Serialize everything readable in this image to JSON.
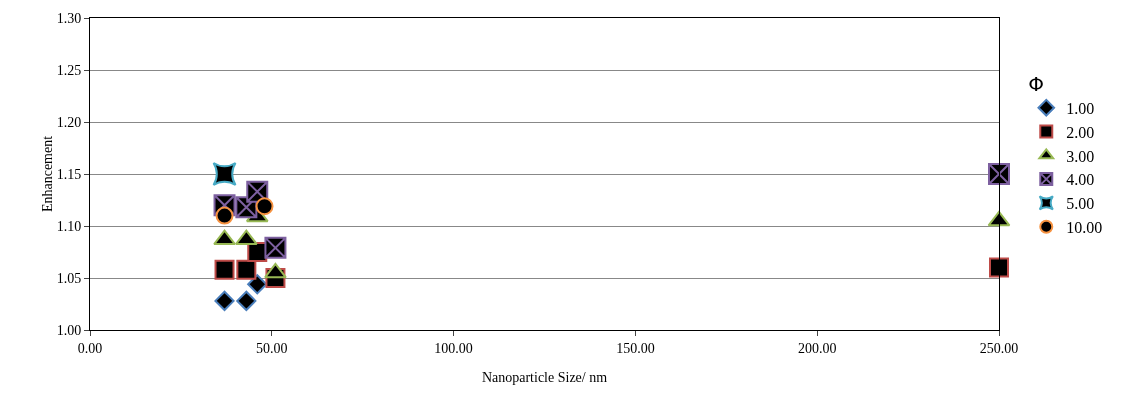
{
  "chart_data": {
    "type": "scatter",
    "xlabel": "Nanoparticle Size/ nm",
    "ylabel": "Enhancement",
    "legend_title": "Φ",
    "xlim": [
      0,
      250
    ],
    "xticks": [
      {
        "value": 0,
        "label": "0.00"
      },
      {
        "value": 50,
        "label": "50.00"
      },
      {
        "value": 100,
        "label": "100.00"
      },
      {
        "value": 150,
        "label": "150.00"
      },
      {
        "value": 200,
        "label": "200.00"
      },
      {
        "value": 250,
        "label": "250.00"
      }
    ],
    "ylim": [
      1,
      1.3
    ],
    "yticks": [
      {
        "value": 1,
        "label": "1.00"
      },
      {
        "value": 1.05,
        "label": "1.05"
      },
      {
        "value": 1.1,
        "label": "1.10"
      },
      {
        "value": 1.15,
        "label": "1.15"
      },
      {
        "value": 1.2,
        "label": "1.20"
      },
      {
        "value": 1.25,
        "label": "1.25"
      },
      {
        "value": 1.3,
        "label": "1.30"
      }
    ],
    "grid": "y",
    "legend": "right",
    "series": [
      {
        "name": "1.00",
        "color": "#4a7ebb",
        "marker": "diamond",
        "x": [
          37,
          43,
          46
        ],
        "values": [
          1.028,
          1.028,
          1.044
        ]
      },
      {
        "name": "2.00",
        "color": "#be4b48",
        "marker": "square",
        "x": [
          37,
          43,
          46,
          51,
          250
        ],
        "values": [
          1.058,
          1.058,
          1.075,
          1.05,
          1.06
        ]
      },
      {
        "name": "3.00",
        "color": "#98b954",
        "marker": "triangle",
        "x": [
          37,
          43,
          46,
          51,
          250
        ],
        "values": [
          1.087,
          1.087,
          1.109,
          1.055,
          1.105
        ]
      },
      {
        "name": "4.00",
        "color": "#7d60a0",
        "marker": "cross",
        "x": [
          37,
          43,
          46,
          51,
          250
        ],
        "values": [
          1.12,
          1.118,
          1.133,
          1.079,
          1.15
        ]
      },
      {
        "name": "5.00",
        "color": "#46aac5",
        "marker": "star",
        "x": [
          37
        ],
        "values": [
          1.15
        ]
      },
      {
        "name": "10.00",
        "color": "#f69240",
        "marker": "circle",
        "x": [
          37,
          48
        ],
        "values": [
          1.11,
          1.119
        ]
      }
    ]
  }
}
